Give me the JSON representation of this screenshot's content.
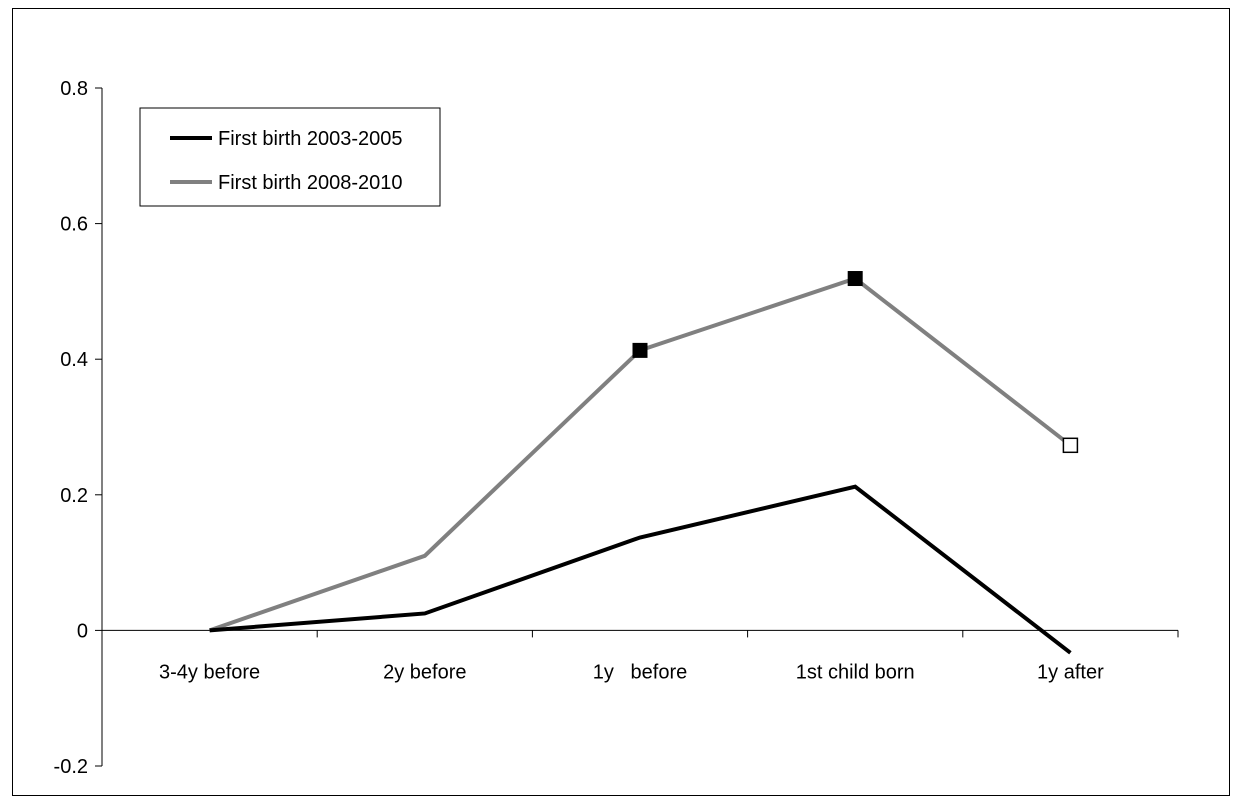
{
  "chart_data": {
    "type": "line",
    "categories": [
      "3-4y before",
      "2y before",
      "1y   before",
      "1st child born",
      "1y after"
    ],
    "yticks": [
      "0.8",
      "0.6",
      "0.4",
      "0.2",
      "0",
      "-0.2"
    ],
    "ytick_values": [
      0.8,
      0.6,
      0.4,
      0.2,
      0,
      -0.2
    ],
    "ylim": [
      -0.2,
      0.8
    ],
    "grid": false,
    "legend_position": "top-left",
    "series": [
      {
        "name": "First birth 2003-2005",
        "color": "#000000",
        "values": [
          0.0,
          0.025,
          0.137,
          0.212,
          -0.033
        ],
        "markers": [
          "none",
          "none",
          "none",
          "none",
          "none"
        ]
      },
      {
        "name": "First birth 2008-2010",
        "color": "#808080",
        "values": [
          0.0,
          0.11,
          0.413,
          0.519,
          0.273
        ],
        "markers": [
          "none",
          "none",
          "filled-square",
          "filled-square",
          "open-square"
        ]
      }
    ]
  }
}
